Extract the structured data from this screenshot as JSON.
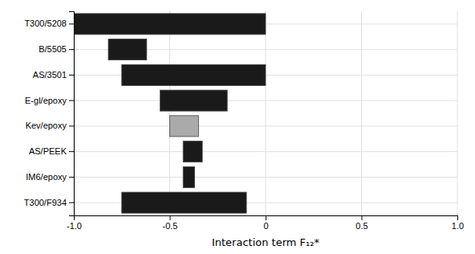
{
  "chart_data": {
    "type": "bar",
    "orientation": "horizontal",
    "categories": [
      "T300/5208",
      "B/5505",
      "AS/3501",
      "E-gl/epoxy",
      "Kev/epoxy",
      "AS/PEEK",
      "IM6/epoxy",
      "T300/F934"
    ],
    "values": [
      [
        -1.0,
        0.0
      ],
      [
        -0.82,
        -0.62
      ],
      [
        -0.75,
        0.0
      ],
      [
        -0.55,
        -0.2
      ],
      [
        -0.5,
        -0.35
      ],
      [
        -0.43,
        -0.33
      ],
      [
        -0.43,
        -0.37
      ],
      [
        -0.75,
        -0.1
      ]
    ],
    "colors": [
      "#1a1a1a",
      "#1a1a1a",
      "#1a1a1a",
      "#1a1a1a",
      "#aaaaaa",
      "#1a1a1a",
      "#1a1a1a",
      "#1a1a1a"
    ],
    "xlabel": "Interaction term F₁₂*",
    "xlim": [
      -1.0,
      1.0
    ],
    "xticks": [
      {
        "value": -1.0,
        "label": "-1.0"
      },
      -0.5,
      0,
      0.5,
      {
        "value": 1.0,
        "label": "1.0"
      }
    ],
    "grid": true
  }
}
